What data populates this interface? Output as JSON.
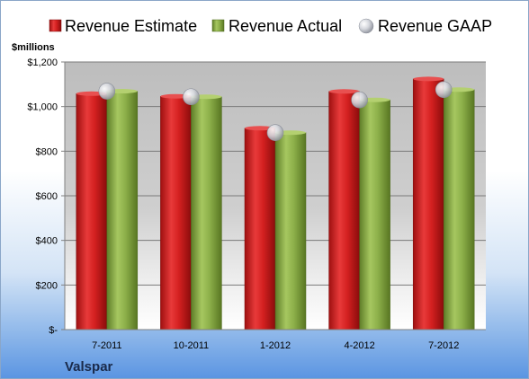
{
  "chart_data": {
    "type": "bar",
    "title": "",
    "unit_label": "$millions",
    "company": "Valspar",
    "categories": [
      "7-2011",
      "10-2011",
      "1-2012",
      "4-2012",
      "7-2012"
    ],
    "series": [
      {
        "name": "Revenue Estimate",
        "values": [
          1058,
          1046,
          903,
          1068,
          1124
        ],
        "color": "#d42020"
      },
      {
        "name": "Revenue Actual",
        "values": [
          1069,
          1044,
          883,
          1030,
          1076
        ],
        "color": "#8db04a"
      },
      {
        "name": "Revenue GAAP",
        "values": [
          1069,
          1044,
          883,
          1030,
          1076
        ],
        "color": "#c8ccd4",
        "style": "marker"
      }
    ],
    "yticks": [
      "$-",
      "$200",
      "$400",
      "$600",
      "$800",
      "$1,000",
      "$1,200"
    ],
    "ylim": [
      0,
      1200
    ],
    "grid": true,
    "legend": "top"
  }
}
